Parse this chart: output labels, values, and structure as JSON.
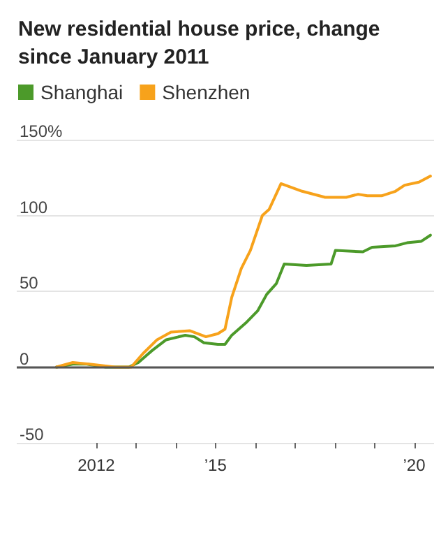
{
  "chart_data": {
    "type": "line",
    "title": "New residential house price, change since January 2011",
    "series": [
      {
        "name": "Shanghai",
        "color": "#4c9a2a",
        "x": [
          2011.0,
          2011.41,
          2011.76,
          2012.24,
          2012.82,
          2013.06,
          2013.41,
          2013.76,
          2014.24,
          2014.47,
          2014.71,
          2015.06,
          2015.24,
          2015.41,
          2015.76,
          2016.06,
          2016.29,
          2016.53,
          2016.73,
          2017.29,
          2017.91,
          2018.02,
          2018.71,
          2018.94,
          2019.53,
          2019.82,
          2020.18,
          2020.41
        ],
        "values": [
          0,
          2,
          2,
          0,
          0,
          3,
          11,
          18,
          21,
          20,
          16,
          15,
          15,
          21,
          29,
          37,
          48,
          55,
          68,
          67,
          68,
          77,
          76,
          79,
          80,
          82,
          83,
          87
        ]
      },
      {
        "name": "Shenzhen",
        "color": "#f7a21b",
        "x": [
          2011.0,
          2011.41,
          2011.82,
          2012.47,
          2012.88,
          2013.18,
          2013.53,
          2013.88,
          2014.35,
          2014.76,
          2015.06,
          2015.24,
          2015.41,
          2015.65,
          2015.88,
          2016.18,
          2016.35,
          2016.65,
          2017.18,
          2017.76,
          2018.0,
          2018.29,
          2018.59,
          2018.82,
          2019.18,
          2019.53,
          2019.76,
          2020.12,
          2020.41
        ],
        "values": [
          0,
          3,
          2,
          0,
          0,
          9,
          18,
          23,
          24,
          20,
          22,
          25,
          46,
          65,
          77,
          100,
          104,
          121,
          116,
          112,
          112,
          112,
          114,
          113,
          113,
          116,
          120,
          122,
          126
        ]
      }
    ],
    "xlim": [
      2010,
      2020.5
    ],
    "xticks": [
      {
        "value": 2012,
        "label": "2012"
      },
      {
        "value": 2013,
        "label": null
      },
      {
        "value": 2014,
        "label": null
      },
      {
        "value": 2015,
        "label": "’15"
      },
      {
        "value": 2016,
        "label": null
      },
      {
        "value": 2017,
        "label": null
      },
      {
        "value": 2018,
        "label": null
      },
      {
        "value": 2019,
        "label": null
      },
      {
        "value": 2020,
        "label": "’20"
      }
    ],
    "ylim": [
      -50,
      150
    ],
    "yticks": [
      -50,
      0,
      50,
      100,
      {
        "value": 150,
        "label": "150%"
      }
    ],
    "ref_lines": [
      {
        "axis": "y",
        "value": 0,
        "color": "#555555"
      }
    ],
    "grid": "y",
    "legend": "top left",
    "marker": "none",
    "line_style": "solid"
  }
}
